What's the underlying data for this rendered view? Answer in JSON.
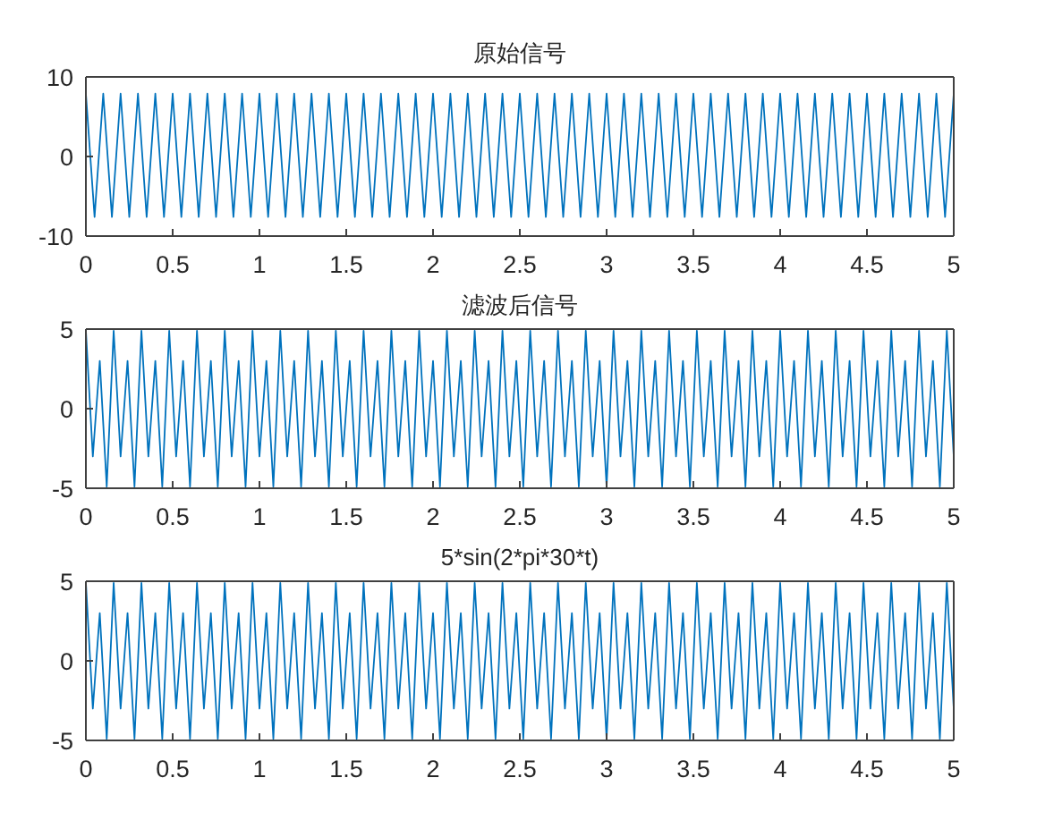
{
  "chart_data": [
    {
      "type": "line",
      "title": "原始信号",
      "color": "#0072bd",
      "xlim": [
        0,
        5
      ],
      "xticks": [
        0,
        0.5,
        1,
        1.5,
        2,
        2.5,
        3,
        3.5,
        4,
        4.5,
        5
      ],
      "ylim": [
        -10,
        10
      ],
      "yticks": [
        -10,
        0,
        10
      ],
      "x": [
        0,
        0.05,
        0.1,
        0.15,
        0.2,
        0.25,
        0.3,
        0.35,
        0.4,
        0.45,
        0.5,
        0.55,
        0.6,
        0.65,
        0.7,
        0.75,
        0.8,
        0.85,
        0.9,
        0.95,
        1,
        1.05,
        1.1,
        1.15,
        1.2,
        1.25,
        1.3,
        1.35,
        1.4,
        1.45,
        1.5,
        1.55,
        1.6,
        1.65,
        1.7,
        1.75,
        1.8,
        1.85,
        1.9,
        1.95,
        2,
        2.05,
        2.1,
        2.15,
        2.2,
        2.25,
        2.3,
        2.35,
        2.4,
        2.45,
        2.5,
        2.55,
        2.6,
        2.65,
        2.7,
        2.75,
        2.8,
        2.85,
        2.9,
        2.95,
        3,
        3.05,
        3.1,
        3.15,
        3.2,
        3.25,
        3.3,
        3.35,
        3.4,
        3.45,
        3.5,
        3.55,
        3.6,
        3.65,
        3.7,
        3.75,
        3.8,
        3.85,
        3.9,
        3.95,
        4,
        4.05,
        4.1,
        4.15,
        4.2,
        4.25,
        4.3,
        4.35,
        4.4,
        4.45,
        4.5,
        4.55,
        4.6,
        4.65,
        4.7,
        4.75,
        4.8,
        4.85,
        4.9,
        4.95,
        5
      ],
      "values": [
        7.9,
        -7.6,
        7.9,
        -7.6,
        7.9,
        -7.6,
        7.9,
        -7.6,
        7.9,
        -7.6,
        7.9,
        -7.6,
        7.9,
        -7.6,
        7.9,
        -7.6,
        7.9,
        -7.6,
        7.9,
        -7.6,
        7.9,
        -7.6,
        7.9,
        -7.6,
        7.9,
        -7.6,
        7.9,
        -7.6,
        7.9,
        -7.6,
        7.9,
        -7.6,
        7.9,
        -7.6,
        7.9,
        -7.6,
        7.9,
        -7.6,
        7.9,
        -7.6,
        7.9,
        -7.6,
        7.9,
        -7.6,
        7.9,
        -7.6,
        7.9,
        -7.6,
        7.9,
        -7.6,
        7.9,
        -7.6,
        7.9,
        -7.6,
        7.9,
        -7.6,
        7.9,
        -7.6,
        7.9,
        -7.6,
        7.9,
        -7.6,
        7.9,
        -7.6,
        7.9,
        -7.6,
        7.9,
        -7.6,
        7.9,
        -7.6,
        7.9,
        -7.6,
        7.9,
        -7.6,
        7.9,
        -7.6,
        7.9,
        -7.6,
        7.9,
        -7.6,
        7.9,
        -7.6,
        7.9,
        -7.6,
        7.9,
        -7.6,
        7.9,
        -7.6,
        7.9,
        -7.6,
        7.9,
        -7.6,
        7.9,
        -7.6,
        7.9,
        -7.6,
        7.9,
        -7.6,
        7.9,
        -7.6,
        7.9
      ]
    },
    {
      "type": "line",
      "title": "滤波后信号",
      "color": "#0072bd",
      "xlim": [
        0,
        5
      ],
      "xticks": [
        0,
        0.5,
        1,
        1.5,
        2,
        2.5,
        3,
        3.5,
        4,
        4.5,
        5
      ],
      "ylim": [
        -5,
        5
      ],
      "yticks": [
        -5,
        0,
        5
      ],
      "x": [
        0,
        0.04,
        0.08,
        0.12,
        0.16,
        0.2,
        0.24,
        0.28,
        0.32,
        0.36,
        0.4,
        0.44,
        0.48,
        0.52,
        0.56,
        0.6,
        0.64,
        0.68,
        0.72,
        0.76,
        0.8,
        0.84,
        0.88,
        0.92,
        0.96,
        1,
        1.04,
        1.08,
        1.12,
        1.16,
        1.2,
        1.24,
        1.28,
        1.32,
        1.36,
        1.4,
        1.44,
        1.48,
        1.52,
        1.56,
        1.6,
        1.64,
        1.68,
        1.72,
        1.76,
        1.8,
        1.84,
        1.88,
        1.92,
        1.96,
        2,
        2.04,
        2.08,
        2.12,
        2.16,
        2.2,
        2.24,
        2.28,
        2.32,
        2.36,
        2.4,
        2.44,
        2.48,
        2.52,
        2.56,
        2.6,
        2.64,
        2.68,
        2.72,
        2.76,
        2.8,
        2.84,
        2.88,
        2.92,
        2.96,
        3,
        3.04,
        3.08,
        3.12,
        3.16,
        3.2,
        3.24,
        3.28,
        3.32,
        3.36,
        3.4,
        3.44,
        3.48,
        3.52,
        3.56,
        3.6,
        3.64,
        3.68,
        3.72,
        3.76,
        3.8,
        3.84,
        3.88,
        3.92,
        3.96,
        4,
        4.04,
        4.08,
        4.12,
        4.16,
        4.2,
        4.24,
        4.28,
        4.32,
        4.36,
        4.4,
        4.44,
        4.48,
        4.52,
        4.56,
        4.6,
        4.64,
        4.68,
        4.72,
        4.76,
        4.8,
        4.84,
        4.88,
        4.92,
        4.96,
        5
      ],
      "values": [
        4.9,
        -3,
        3,
        -4.9,
        4.9,
        -3,
        3,
        -4.9,
        4.9,
        -3,
        3,
        -4.9,
        4.9,
        -3,
        3,
        -4.9,
        4.9,
        -3,
        3,
        -4.9,
        4.9,
        -3,
        3,
        -4.9,
        4.9,
        -3,
        3,
        -4.9,
        4.9,
        -3,
        3,
        -4.9,
        4.9,
        -3,
        3,
        -4.9,
        4.9,
        -3,
        3,
        -4.9,
        4.9,
        -3,
        3,
        -4.9,
        4.9,
        -3,
        3,
        -4.9,
        4.9,
        -3,
        3,
        -4.9,
        4.9,
        -3,
        3,
        -4.9,
        4.9,
        -3,
        3,
        -4.9,
        4.9,
        -3,
        3,
        -4.9,
        4.9,
        -3,
        3,
        -4.9,
        4.9,
        -3,
        3,
        -4.9,
        4.9,
        -3,
        3,
        -4.9,
        4.9,
        -3,
        3,
        -4.9,
        4.9,
        -3,
        3,
        -4.9,
        4.9,
        -3,
        3,
        -4.9,
        4.9,
        -3,
        3,
        -4.9,
        4.9,
        -3,
        3,
        -4.9,
        4.9,
        -3,
        3,
        -4.9,
        4.9,
        -3,
        3,
        -4.9,
        4.9,
        -3,
        3,
        -4.9,
        4.9,
        -3,
        3,
        -4.9,
        4.9,
        -3,
        3,
        -4.9,
        4.9,
        -3,
        3,
        -4.9,
        4.9,
        -3,
        3,
        -4.9,
        4.9,
        -3
      ]
    },
    {
      "type": "line",
      "title": "5*sin(2*pi*30*t)",
      "color": "#0072bd",
      "xlim": [
        0,
        5
      ],
      "xticks": [
        0,
        0.5,
        1,
        1.5,
        2,
        2.5,
        3,
        3.5,
        4,
        4.5,
        5
      ],
      "ylim": [
        -5,
        5
      ],
      "yticks": [
        -5,
        0,
        5
      ],
      "x": [
        0,
        0.04,
        0.08,
        0.12,
        0.16,
        0.2,
        0.24,
        0.28,
        0.32,
        0.36,
        0.4,
        0.44,
        0.48,
        0.52,
        0.56,
        0.6,
        0.64,
        0.68,
        0.72,
        0.76,
        0.8,
        0.84,
        0.88,
        0.92,
        0.96,
        1,
        1.04,
        1.08,
        1.12,
        1.16,
        1.2,
        1.24,
        1.28,
        1.32,
        1.36,
        1.4,
        1.44,
        1.48,
        1.52,
        1.56,
        1.6,
        1.64,
        1.68,
        1.72,
        1.76,
        1.8,
        1.84,
        1.88,
        1.92,
        1.96,
        2,
        2.04,
        2.08,
        2.12,
        2.16,
        2.2,
        2.24,
        2.28,
        2.32,
        2.36,
        2.4,
        2.44,
        2.48,
        2.52,
        2.56,
        2.6,
        2.64,
        2.68,
        2.72,
        2.76,
        2.8,
        2.84,
        2.88,
        2.92,
        2.96,
        3,
        3.04,
        3.08,
        3.12,
        3.16,
        3.2,
        3.24,
        3.28,
        3.32,
        3.36,
        3.4,
        3.44,
        3.48,
        3.52,
        3.56,
        3.6,
        3.64,
        3.68,
        3.72,
        3.76,
        3.8,
        3.84,
        3.88,
        3.92,
        3.96,
        4,
        4.04,
        4.08,
        4.12,
        4.16,
        4.2,
        4.24,
        4.28,
        4.32,
        4.36,
        4.4,
        4.44,
        4.48,
        4.52,
        4.56,
        4.6,
        4.64,
        4.68,
        4.72,
        4.76,
        4.8,
        4.84,
        4.88,
        4.92,
        4.96,
        5
      ],
      "values": [
        4.9,
        -3,
        3,
        -4.9,
        4.9,
        -3,
        3,
        -4.9,
        4.9,
        -3,
        3,
        -4.9,
        4.9,
        -3,
        3,
        -4.9,
        4.9,
        -3,
        3,
        -4.9,
        4.9,
        -3,
        3,
        -4.9,
        4.9,
        -3,
        3,
        -4.9,
        4.9,
        -3,
        3,
        -4.9,
        4.9,
        -3,
        3,
        -4.9,
        4.9,
        -3,
        3,
        -4.9,
        4.9,
        -3,
        3,
        -4.9,
        4.9,
        -3,
        3,
        -4.9,
        4.9,
        -3,
        3,
        -4.9,
        4.9,
        -3,
        3,
        -4.9,
        4.9,
        -3,
        3,
        -4.9,
        4.9,
        -3,
        3,
        -4.9,
        4.9,
        -3,
        3,
        -4.9,
        4.9,
        -3,
        3,
        -4.9,
        4.9,
        -3,
        3,
        -4.9,
        4.9,
        -3,
        3,
        -4.9,
        4.9,
        -3,
        3,
        -4.9,
        4.9,
        -3,
        3,
        -4.9,
        4.9,
        -3,
        3,
        -4.9,
        4.9,
        -3,
        3,
        -4.9,
        4.9,
        -3,
        3,
        -4.9,
        4.9,
        -3,
        3,
        -4.9,
        4.9,
        -3,
        3,
        -4.9,
        4.9,
        -3,
        3,
        -4.9,
        4.9,
        -3,
        3,
        -4.9,
        4.9,
        -3,
        3,
        -4.9,
        4.9,
        -3,
        3,
        -4.9,
        4.9,
        -3
      ]
    }
  ]
}
